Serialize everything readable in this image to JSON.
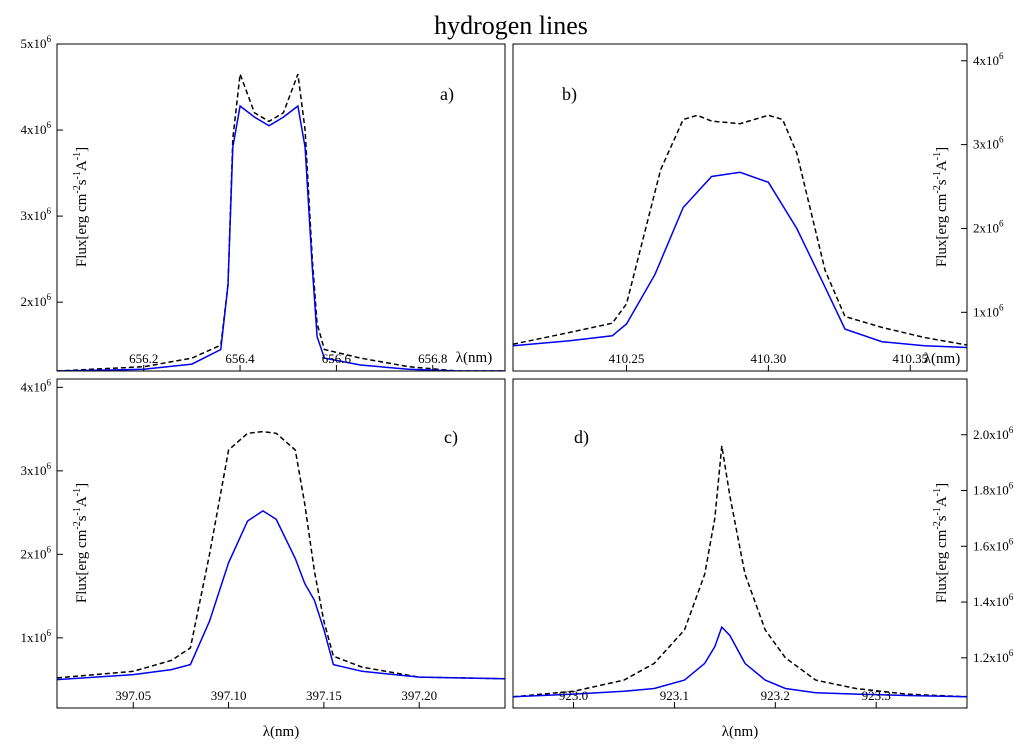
{
  "figure": {
    "title": "hydrogen lines"
  },
  "colors": {
    "model": "#0000ee",
    "observed": "#000000"
  },
  "chart_data": [
    {
      "type": "line",
      "panel": "a)",
      "xlabel": "λ(nm)",
      "ylabel": "Flux[erg cm -2 s -1 A -1 ]",
      "xlim": [
        656.02,
        656.95
      ],
      "ylim": [
        1200000.0,
        5000000.0
      ],
      "x_ticks": [
        656.2,
        656.4,
        656.6,
        656.8
      ],
      "x_tick_labels": [
        "656.2",
        "656.4",
        "656.6",
        "656.8"
      ],
      "y_ticks": [
        2000000.0,
        3000000.0,
        4000000.0,
        5000000.0
      ],
      "y_tick_labels": [
        "2x10",
        "3x10",
        "4x10",
        "5x10"
      ],
      "y_tick_exp": "6",
      "y_axis_side": "left",
      "series": [
        {
          "style": "dashed",
          "color": "#000000",
          "x": [
            656.02,
            656.2,
            656.3,
            656.36,
            656.375,
            656.385,
            656.4,
            656.43,
            656.46,
            656.49,
            656.52,
            656.535,
            656.55,
            656.56,
            656.575,
            656.65,
            656.75,
            656.85,
            656.95
          ],
          "y": [
            1200000.0,
            1250000.0,
            1350000.0,
            1500000.0,
            2200000.0,
            3900000.0,
            4650000.0,
            4200000.0,
            4100000.0,
            4200000.0,
            4650000.0,
            4000000.0,
            2500000.0,
            1750000.0,
            1450000.0,
            1350000.0,
            1250000.0,
            1200000.0,
            1200000.0
          ]
        },
        {
          "style": "solid",
          "color": "#0000ee",
          "x": [
            656.02,
            656.2,
            656.3,
            656.36,
            656.375,
            656.385,
            656.4,
            656.43,
            656.46,
            656.49,
            656.52,
            656.535,
            656.55,
            656.56,
            656.575,
            656.65,
            656.75,
            656.85,
            656.95
          ],
          "y": [
            1200000.0,
            1220000.0,
            1280000.0,
            1450000.0,
            2200000.0,
            3800000.0,
            4280000.0,
            4150000.0,
            4050000.0,
            4150000.0,
            4280000.0,
            3800000.0,
            2400000.0,
            1600000.0,
            1350000.0,
            1270000.0,
            1220000.0,
            1200000.0,
            1200000.0
          ]
        }
      ]
    },
    {
      "type": "line",
      "panel": "b)",
      "xlabel": "λ(nm)",
      "ylabel": "Flux[erg cm -2 s -1 A -1 ]",
      "xlim": [
        410.21,
        410.37
      ],
      "ylim": [
        300000.0,
        4200000.0
      ],
      "x_ticks": [
        410.25,
        410.3,
        410.35
      ],
      "x_tick_labels": [
        "410.25",
        "410.30",
        "410.35"
      ],
      "y_ticks": [
        1000000.0,
        2000000.0,
        3000000.0,
        4000000.0
      ],
      "y_tick_labels": [
        "1x10",
        "2x10",
        "3x10",
        "4x10"
      ],
      "y_tick_exp": "6",
      "y_axis_side": "right",
      "series": [
        {
          "style": "dashed",
          "color": "#000000",
          "x": [
            410.21,
            410.23,
            410.245,
            410.25,
            410.262,
            410.27,
            410.275,
            410.28,
            410.29,
            410.3,
            410.305,
            410.31,
            410.32,
            410.327,
            410.34,
            410.355,
            410.37
          ],
          "y": [
            620000.0,
            760000.0,
            870000.0,
            1100000.0,
            2700000.0,
            3300000.0,
            3350000.0,
            3280000.0,
            3250000.0,
            3350000.0,
            3300000.0,
            2900000.0,
            1500000.0,
            950000.0,
            820000.0,
            700000.0,
            610000.0
          ]
        },
        {
          "style": "solid",
          "color": "#0000ee",
          "x": [
            410.21,
            410.23,
            410.245,
            410.25,
            410.26,
            410.27,
            410.28,
            410.29,
            410.3,
            410.31,
            410.32,
            410.327,
            410.34,
            410.355,
            410.37
          ],
          "y": [
            600000.0,
            660000.0,
            720000.0,
            860000.0,
            1450000.0,
            2250000.0,
            2620000.0,
            2670000.0,
            2550000.0,
            2000000.0,
            1300000.0,
            800000.0,
            650000.0,
            600000.0,
            580000.0
          ]
        }
      ]
    },
    {
      "type": "line",
      "panel": "c)",
      "xlabel": "λ(nm)",
      "ylabel": "Flux[erg cm -2 s -1 A -1 ]",
      "xlim": [
        397.01,
        397.245
      ],
      "ylim": [
        160000.0,
        4100000.0
      ],
      "x_ticks": [
        397.05,
        397.1,
        397.15,
        397.2
      ],
      "x_tick_labels": [
        "397.05",
        "397.10",
        "397.15",
        "397.20"
      ],
      "y_ticks": [
        1000000.0,
        2000000.0,
        3000000.0,
        4000000.0
      ],
      "y_tick_labels": [
        "1x10",
        "2x10",
        "3x10",
        "4x10"
      ],
      "y_tick_exp": "6",
      "y_axis_side": "left",
      "series": [
        {
          "style": "dashed",
          "color": "#000000",
          "x": [
            397.01,
            397.05,
            397.07,
            397.08,
            397.09,
            397.1,
            397.11,
            397.118,
            397.125,
            397.135,
            397.14,
            397.145,
            397.15,
            397.155,
            397.17,
            397.2,
            397.245
          ],
          "y": [
            520000.0,
            600000.0,
            730000.0,
            880000.0,
            2000000.0,
            3250000.0,
            3450000.0,
            3470000.0,
            3450000.0,
            3250000.0,
            2600000.0,
            1800000.0,
            1200000.0,
            780000.0,
            650000.0,
            530000.0,
            510000.0
          ]
        },
        {
          "style": "solid",
          "color": "#0000ee",
          "x": [
            397.01,
            397.05,
            397.07,
            397.08,
            397.09,
            397.1,
            397.11,
            397.118,
            397.125,
            397.135,
            397.14,
            397.145,
            397.15,
            397.155,
            397.17,
            397.2,
            397.245
          ],
          "y": [
            500000.0,
            560000.0,
            620000.0,
            680000.0,
            1200000.0,
            1900000.0,
            2400000.0,
            2520000.0,
            2420000.0,
            1950000.0,
            1650000.0,
            1450000.0,
            1100000.0,
            680000.0,
            600000.0,
            530000.0,
            510000.0
          ]
        }
      ]
    },
    {
      "type": "line",
      "panel": "d)",
      "xlabel": "λ(nm)",
      "ylabel": "Flux[erg cm -2 s -1 A -1 ]",
      "xlim": [
        922.94,
        923.39
      ],
      "ylim": [
        1020000.0,
        2200000.0
      ],
      "x_ticks": [
        923.0,
        923.1,
        923.2,
        923.3
      ],
      "x_tick_labels": [
        "923.0",
        "923.1",
        "923.2",
        "923.3"
      ],
      "y_ticks": [
        1200000.0,
        1400000.0,
        1600000.0,
        1800000.0,
        2000000.0
      ],
      "y_tick_labels": [
        "1.2x10",
        "1.4x10",
        "1.6x10",
        "1.8x10",
        "2.0x10"
      ],
      "y_tick_exp": "6",
      "y_axis_side": "right",
      "series": [
        {
          "style": "dashed",
          "color": "#000000",
          "x": [
            922.94,
            923.0,
            923.05,
            923.08,
            923.11,
            923.13,
            923.14,
            923.147,
            923.155,
            923.17,
            923.19,
            923.21,
            923.24,
            923.28,
            923.33,
            923.39
          ],
          "y": [
            1060000.0,
            1080000.0,
            1120000.0,
            1180000.0,
            1300000.0,
            1500000.0,
            1700000.0,
            1960000.0,
            1780000.0,
            1500000.0,
            1300000.0,
            1200000.0,
            1120000.0,
            1090000.0,
            1070000.0,
            1060000.0
          ]
        },
        {
          "style": "solid",
          "color": "#0000ee",
          "x": [
            922.94,
            923.0,
            923.05,
            923.08,
            923.11,
            923.13,
            923.14,
            923.147,
            923.155,
            923.17,
            923.19,
            923.21,
            923.24,
            923.28,
            923.33,
            923.39
          ],
          "y": [
            1060000.0,
            1070000.0,
            1080000.0,
            1090000.0,
            1120000.0,
            1180000.0,
            1240000.0,
            1310000.0,
            1280000.0,
            1180000.0,
            1120000.0,
            1090000.0,
            1075000.0,
            1070000.0,
            1065000.0,
            1060000.0
          ]
        }
      ]
    }
  ]
}
